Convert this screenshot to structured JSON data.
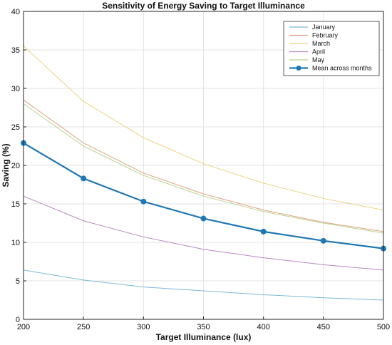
{
  "chart_data": {
    "type": "line",
    "title": "Sensitivity of Energy Saving to Target Illuminance",
    "xlabel": "Target Illuminance (lux)",
    "ylabel": "Saving (%)",
    "xlim": [
      200,
      500
    ],
    "ylim": [
      0,
      40
    ],
    "xticks": [
      200,
      250,
      300,
      350,
      400,
      450,
      500
    ],
    "yticks": [
      0,
      5,
      10,
      15,
      20,
      25,
      30,
      35,
      40
    ],
    "grid": true,
    "legend_position": "top-right",
    "x": [
      200,
      250,
      300,
      350,
      400,
      450,
      500
    ],
    "series": [
      {
        "name": "January",
        "color": "#7ab8d8",
        "marker": false,
        "values": [
          6.4,
          5.1,
          4.2,
          3.7,
          3.2,
          2.8,
          2.5
        ]
      },
      {
        "name": "February",
        "color": "#e2a184",
        "marker": false,
        "values": [
          28.5,
          22.9,
          19.0,
          16.3,
          14.2,
          12.6,
          11.4
        ]
      },
      {
        "name": "March",
        "color": "#efd27f",
        "marker": false,
        "values": [
          35.5,
          28.3,
          23.6,
          20.2,
          17.7,
          15.7,
          14.2
        ]
      },
      {
        "name": "April",
        "color": "#b886c4",
        "marker": false,
        "values": [
          16.0,
          12.8,
          10.7,
          9.1,
          8.0,
          7.1,
          6.4
        ]
      },
      {
        "name": "May",
        "color": "#b7d48a",
        "marker": false,
        "values": [
          28.0,
          22.5,
          18.7,
          16.0,
          14.0,
          12.5,
          11.2
        ]
      },
      {
        "name": "Mean across months",
        "color": "#1f77b4",
        "marker": true,
        "values": [
          22.9,
          18.3,
          15.3,
          13.1,
          11.4,
          10.2,
          9.2
        ]
      }
    ]
  }
}
